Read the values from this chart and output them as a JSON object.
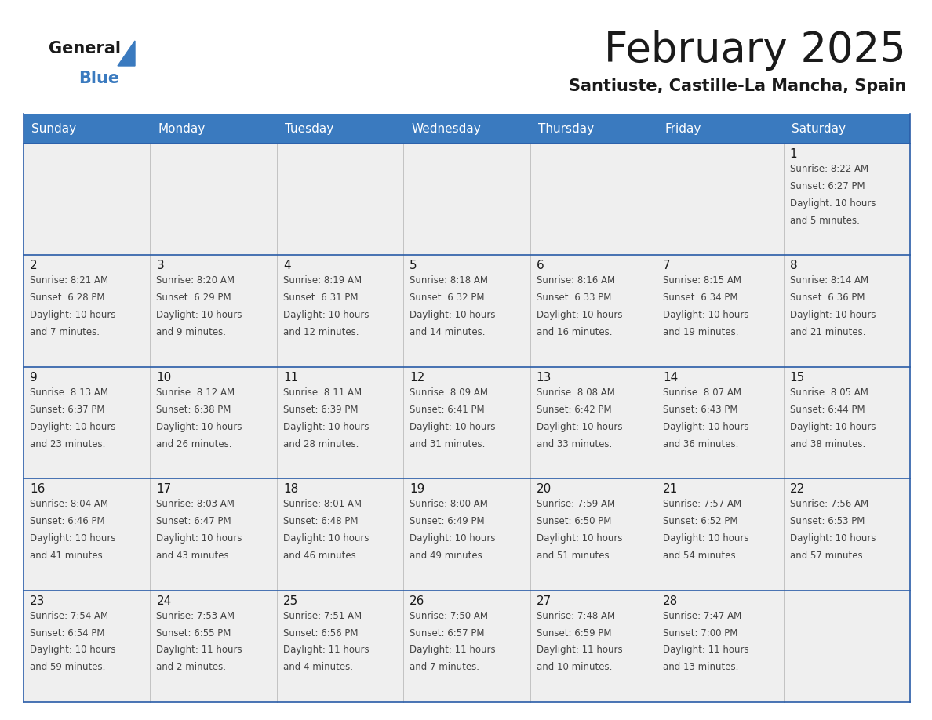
{
  "title": "February 2025",
  "subtitle": "Santiuste, Castille-La Mancha, Spain",
  "header_color": "#3a7abf",
  "header_text_color": "#ffffff",
  "cell_bg_color": "#efefef",
  "day_number_color": "#1a1a1a",
  "info_text_color": "#444444",
  "border_color": "#2a5ca8",
  "days_of_week": [
    "Sunday",
    "Monday",
    "Tuesday",
    "Wednesday",
    "Thursday",
    "Friday",
    "Saturday"
  ],
  "calendar_data": [
    [
      null,
      null,
      null,
      null,
      null,
      null,
      {
        "day": 1,
        "sunrise": "8:22 AM",
        "sunset": "6:27 PM",
        "daylight_line1": "10 hours",
        "daylight_line2": "and 5 minutes."
      }
    ],
    [
      {
        "day": 2,
        "sunrise": "8:21 AM",
        "sunset": "6:28 PM",
        "daylight_line1": "10 hours",
        "daylight_line2": "and 7 minutes."
      },
      {
        "day": 3,
        "sunrise": "8:20 AM",
        "sunset": "6:29 PM",
        "daylight_line1": "10 hours",
        "daylight_line2": "and 9 minutes."
      },
      {
        "day": 4,
        "sunrise": "8:19 AM",
        "sunset": "6:31 PM",
        "daylight_line1": "10 hours",
        "daylight_line2": "and 12 minutes."
      },
      {
        "day": 5,
        "sunrise": "8:18 AM",
        "sunset": "6:32 PM",
        "daylight_line1": "10 hours",
        "daylight_line2": "and 14 minutes."
      },
      {
        "day": 6,
        "sunrise": "8:16 AM",
        "sunset": "6:33 PM",
        "daylight_line1": "10 hours",
        "daylight_line2": "and 16 minutes."
      },
      {
        "day": 7,
        "sunrise": "8:15 AM",
        "sunset": "6:34 PM",
        "daylight_line1": "10 hours",
        "daylight_line2": "and 19 minutes."
      },
      {
        "day": 8,
        "sunrise": "8:14 AM",
        "sunset": "6:36 PM",
        "daylight_line1": "10 hours",
        "daylight_line2": "and 21 minutes."
      }
    ],
    [
      {
        "day": 9,
        "sunrise": "8:13 AM",
        "sunset": "6:37 PM",
        "daylight_line1": "10 hours",
        "daylight_line2": "and 23 minutes."
      },
      {
        "day": 10,
        "sunrise": "8:12 AM",
        "sunset": "6:38 PM",
        "daylight_line1": "10 hours",
        "daylight_line2": "and 26 minutes."
      },
      {
        "day": 11,
        "sunrise": "8:11 AM",
        "sunset": "6:39 PM",
        "daylight_line1": "10 hours",
        "daylight_line2": "and 28 minutes."
      },
      {
        "day": 12,
        "sunrise": "8:09 AM",
        "sunset": "6:41 PM",
        "daylight_line1": "10 hours",
        "daylight_line2": "and 31 minutes."
      },
      {
        "day": 13,
        "sunrise": "8:08 AM",
        "sunset": "6:42 PM",
        "daylight_line1": "10 hours",
        "daylight_line2": "and 33 minutes."
      },
      {
        "day": 14,
        "sunrise": "8:07 AM",
        "sunset": "6:43 PM",
        "daylight_line1": "10 hours",
        "daylight_line2": "and 36 minutes."
      },
      {
        "day": 15,
        "sunrise": "8:05 AM",
        "sunset": "6:44 PM",
        "daylight_line1": "10 hours",
        "daylight_line2": "and 38 minutes."
      }
    ],
    [
      {
        "day": 16,
        "sunrise": "8:04 AM",
        "sunset": "6:46 PM",
        "daylight_line1": "10 hours",
        "daylight_line2": "and 41 minutes."
      },
      {
        "day": 17,
        "sunrise": "8:03 AM",
        "sunset": "6:47 PM",
        "daylight_line1": "10 hours",
        "daylight_line2": "and 43 minutes."
      },
      {
        "day": 18,
        "sunrise": "8:01 AM",
        "sunset": "6:48 PM",
        "daylight_line1": "10 hours",
        "daylight_line2": "and 46 minutes."
      },
      {
        "day": 19,
        "sunrise": "8:00 AM",
        "sunset": "6:49 PM",
        "daylight_line1": "10 hours",
        "daylight_line2": "and 49 minutes."
      },
      {
        "day": 20,
        "sunrise": "7:59 AM",
        "sunset": "6:50 PM",
        "daylight_line1": "10 hours",
        "daylight_line2": "and 51 minutes."
      },
      {
        "day": 21,
        "sunrise": "7:57 AM",
        "sunset": "6:52 PM",
        "daylight_line1": "10 hours",
        "daylight_line2": "and 54 minutes."
      },
      {
        "day": 22,
        "sunrise": "7:56 AM",
        "sunset": "6:53 PM",
        "daylight_line1": "10 hours",
        "daylight_line2": "and 57 minutes."
      }
    ],
    [
      {
        "day": 23,
        "sunrise": "7:54 AM",
        "sunset": "6:54 PM",
        "daylight_line1": "10 hours",
        "daylight_line2": "and 59 minutes."
      },
      {
        "day": 24,
        "sunrise": "7:53 AM",
        "sunset": "6:55 PM",
        "daylight_line1": "11 hours",
        "daylight_line2": "and 2 minutes."
      },
      {
        "day": 25,
        "sunrise": "7:51 AM",
        "sunset": "6:56 PM",
        "daylight_line1": "11 hours",
        "daylight_line2": "and 4 minutes."
      },
      {
        "day": 26,
        "sunrise": "7:50 AM",
        "sunset": "6:57 PM",
        "daylight_line1": "11 hours",
        "daylight_line2": "and 7 minutes."
      },
      {
        "day": 27,
        "sunrise": "7:48 AM",
        "sunset": "6:59 PM",
        "daylight_line1": "11 hours",
        "daylight_line2": "and 10 minutes."
      },
      {
        "day": 28,
        "sunrise": "7:47 AM",
        "sunset": "7:00 PM",
        "daylight_line1": "11 hours",
        "daylight_line2": "and 13 minutes."
      },
      null
    ]
  ]
}
